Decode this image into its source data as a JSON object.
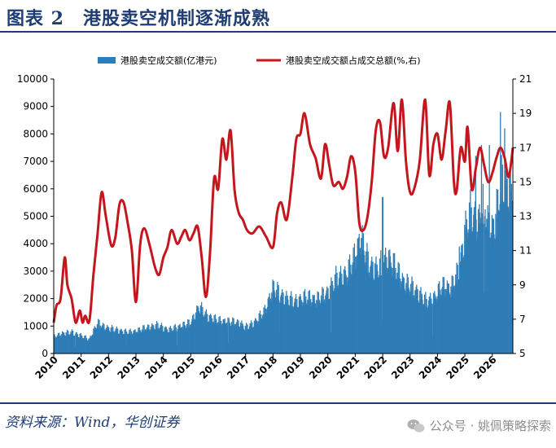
{
  "header": {
    "title": "图表 2　港股卖空机制逐渐成熟"
  },
  "footer": {
    "source": "资料来源：Wind，华创证券",
    "watermark": "公众号 · 姚佩策略探索"
  },
  "colors": {
    "brand": "#1f3d74",
    "bar": "#2f7db6",
    "line": "#c4161c"
  },
  "chart_data": {
    "type": "bar+line",
    "x_axis": {
      "min": 2010,
      "max": 2026.75,
      "tick_labels": [
        "2010",
        "2011",
        "2012",
        "2013",
        "2014",
        "2015",
        "2016",
        "2017",
        "2018",
        "2019",
        "2020",
        "2021",
        "2022",
        "2023",
        "2024",
        "2025",
        "2026"
      ]
    },
    "y_left": {
      "min": 0,
      "max": 10000,
      "ticks": [
        0,
        1000,
        2000,
        3000,
        4000,
        5000,
        6000,
        7000,
        8000,
        9000,
        10000
      ],
      "tick_labels": [
        "0",
        "1000",
        "2000",
        "3000",
        "4000",
        "5000",
        "6000",
        "7000",
        "8000",
        "9000",
        "10000"
      ]
    },
    "y_right": {
      "min": 5,
      "max": 21,
      "ticks": [
        5,
        7,
        9,
        11,
        13,
        15,
        17,
        19,
        21
      ],
      "tick_labels": [
        "5",
        "7",
        "9",
        "11",
        "13",
        "15",
        "17",
        "19",
        "21"
      ]
    },
    "legend": {
      "placement": "top",
      "bar_label": "港股卖空成交额(亿港元)",
      "line_label": "港股卖空成交额占成交总额(%,右)"
    },
    "bar_anchors": [
      [
        2010.0,
        700
      ],
      [
        2010.3,
        850
      ],
      [
        2010.7,
        900
      ],
      [
        2011.0,
        750
      ],
      [
        2011.3,
        600
      ],
      [
        2011.6,
        1300
      ],
      [
        2011.9,
        1100
      ],
      [
        2012.3,
        1000
      ],
      [
        2012.7,
        900
      ],
      [
        2013.0,
        950
      ],
      [
        2013.4,
        1100
      ],
      [
        2013.8,
        1200
      ],
      [
        2014.2,
        1000
      ],
      [
        2014.6,
        1150
      ],
      [
        2015.0,
        1300
      ],
      [
        2015.3,
        2000
      ],
      [
        2015.6,
        1600
      ],
      [
        2016.0,
        1400
      ],
      [
        2016.4,
        1350
      ],
      [
        2016.8,
        1300
      ],
      [
        2017.0,
        1100
      ],
      [
        2017.3,
        1300
      ],
      [
        2017.7,
        1800
      ],
      [
        2018.0,
        2800
      ],
      [
        2018.4,
        2400
      ],
      [
        2018.8,
        2200
      ],
      [
        2019.2,
        2400
      ],
      [
        2019.6,
        2300
      ],
      [
        2020.0,
        2600
      ],
      [
        2020.3,
        3200
      ],
      [
        2020.7,
        3400
      ],
      [
        2021.0,
        4200
      ],
      [
        2021.2,
        5000
      ],
      [
        2021.5,
        3800
      ],
      [
        2021.8,
        3600
      ],
      [
        2022.2,
        4100
      ],
      [
        2022.5,
        3600
      ],
      [
        2022.8,
        3000
      ],
      [
        2023.0,
        2900
      ],
      [
        2023.3,
        2600
      ],
      [
        2023.6,
        2200
      ],
      [
        2023.9,
        2400
      ],
      [
        2024.2,
        2900
      ],
      [
        2024.5,
        2800
      ],
      [
        2024.8,
        3600
      ],
      [
        2025.0,
        5200
      ],
      [
        2025.2,
        6000
      ],
      [
        2025.5,
        5600
      ],
      [
        2025.7,
        6500
      ],
      [
        2025.9,
        5200
      ],
      [
        2026.1,
        5600
      ],
      [
        2026.35,
        7400
      ],
      [
        2026.6,
        7200
      ],
      [
        2026.75,
        6800
      ]
    ],
    "bar_spikes": [
      [
        2022.0,
        5700
      ],
      [
        2024.8,
        3900
      ],
      [
        2025.4,
        7200
      ],
      [
        2025.6,
        7600
      ],
      [
        2025.9,
        7600
      ],
      [
        2026.3,
        8800
      ],
      [
        2026.45,
        8200
      ]
    ],
    "line_values": [
      [
        2010.0,
        6.8
      ],
      [
        2010.1,
        7.8
      ],
      [
        2010.25,
        8.2
      ],
      [
        2010.4,
        10.6
      ],
      [
        2010.5,
        9.0
      ],
      [
        2010.65,
        8.2
      ],
      [
        2010.8,
        6.8
      ],
      [
        2010.95,
        7.5
      ],
      [
        2011.05,
        6.8
      ],
      [
        2011.15,
        7.2
      ],
      [
        2011.3,
        6.9
      ],
      [
        2011.45,
        9.6
      ],
      [
        2011.6,
        12.0
      ],
      [
        2011.75,
        14.4
      ],
      [
        2011.9,
        13.0
      ],
      [
        2012.1,
        11.3
      ],
      [
        2012.25,
        11.8
      ],
      [
        2012.4,
        13.7
      ],
      [
        2012.55,
        13.8
      ],
      [
        2012.7,
        12.6
      ],
      [
        2012.85,
        11.0
      ],
      [
        2013.0,
        8.0
      ],
      [
        2013.15,
        11.3
      ],
      [
        2013.3,
        12.3
      ],
      [
        2013.5,
        11.3
      ],
      [
        2013.7,
        10.0
      ],
      [
        2013.85,
        9.6
      ],
      [
        2014.0,
        10.6
      ],
      [
        2014.15,
        11.2
      ],
      [
        2014.3,
        12.2
      ],
      [
        2014.5,
        11.4
      ],
      [
        2014.65,
        11.8
      ],
      [
        2014.8,
        12.2
      ],
      [
        2014.95,
        11.6
      ],
      [
        2015.1,
        12.0
      ],
      [
        2015.25,
        12.4
      ],
      [
        2015.4,
        10.6
      ],
      [
        2015.55,
        8.3
      ],
      [
        2015.7,
        10.8
      ],
      [
        2015.85,
        15.2
      ],
      [
        2016.0,
        14.6
      ],
      [
        2016.15,
        17.5
      ],
      [
        2016.3,
        16.3
      ],
      [
        2016.45,
        18.0
      ],
      [
        2016.6,
        14.5
      ],
      [
        2016.75,
        13.2
      ],
      [
        2016.9,
        12.8
      ],
      [
        2017.05,
        12.2
      ],
      [
        2017.25,
        12.0
      ],
      [
        2017.5,
        12.4
      ],
      [
        2017.75,
        11.8
      ],
      [
        2018.0,
        11.2
      ],
      [
        2018.15,
        13.2
      ],
      [
        2018.3,
        13.8
      ],
      [
        2018.5,
        12.8
      ],
      [
        2018.7,
        15.2
      ],
      [
        2018.85,
        17.5
      ],
      [
        2019.0,
        17.8
      ],
      [
        2019.15,
        19.0
      ],
      [
        2019.35,
        17.2
      ],
      [
        2019.55,
        16.4
      ],
      [
        2019.75,
        15.2
      ],
      [
        2019.9,
        17.2
      ],
      [
        2020.05,
        16.0
      ],
      [
        2020.2,
        14.8
      ],
      [
        2020.4,
        15.0
      ],
      [
        2020.55,
        14.6
      ],
      [
        2020.7,
        15.3
      ],
      [
        2020.85,
        16.5
      ],
      [
        2021.0,
        15.6
      ],
      [
        2021.15,
        12.6
      ],
      [
        2021.3,
        12.2
      ],
      [
        2021.45,
        13.0
      ],
      [
        2021.6,
        15.0
      ],
      [
        2021.75,
        18.0
      ],
      [
        2021.9,
        18.5
      ],
      [
        2022.05,
        16.5
      ],
      [
        2022.2,
        17.0
      ],
      [
        2022.4,
        19.6
      ],
      [
        2022.55,
        16.8
      ],
      [
        2022.7,
        19.8
      ],
      [
        2022.85,
        16.2
      ],
      [
        2023.0,
        14.4
      ],
      [
        2023.15,
        14.6
      ],
      [
        2023.35,
        16.2
      ],
      [
        2023.55,
        19.8
      ],
      [
        2023.7,
        15.4
      ],
      [
        2023.85,
        17.2
      ],
      [
        2024.0,
        17.8
      ],
      [
        2024.15,
        16.3
      ],
      [
        2024.3,
        18.0
      ],
      [
        2024.45,
        19.6
      ],
      [
        2024.6,
        15.0
      ],
      [
        2024.7,
        14.5
      ],
      [
        2024.85,
        17.0
      ],
      [
        2025.0,
        16.2
      ],
      [
        2025.1,
        18.2
      ],
      [
        2025.25,
        14.6
      ],
      [
        2025.4,
        15.8
      ],
      [
        2025.55,
        17.0
      ],
      [
        2025.7,
        16.0
      ],
      [
        2025.85,
        15.0
      ],
      [
        2026.0,
        15.5
      ],
      [
        2026.15,
        16.4
      ],
      [
        2026.3,
        17.0
      ],
      [
        2026.45,
        16.4
      ],
      [
        2026.6,
        15.3
      ],
      [
        2026.75,
        17.0
      ]
    ]
  }
}
